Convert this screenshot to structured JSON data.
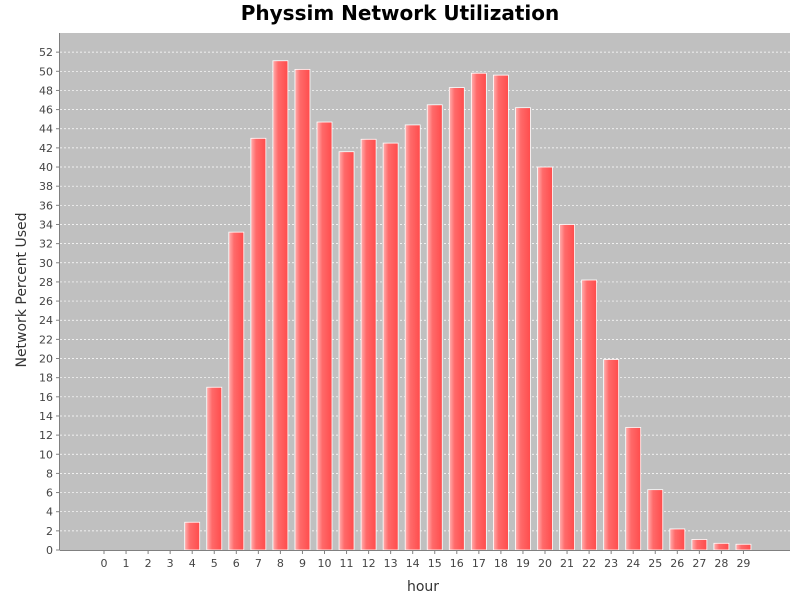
{
  "chart_data": {
    "type": "bar",
    "title": "Physsim Network Utilization",
    "xlabel": "hour",
    "ylabel": "Network Percent Used",
    "categories": [
      "0",
      "1",
      "2",
      "3",
      "4",
      "5",
      "6",
      "7",
      "8",
      "9",
      "10",
      "11",
      "12",
      "13",
      "14",
      "15",
      "16",
      "17",
      "18",
      "19",
      "20",
      "21",
      "22",
      "23",
      "24",
      "25",
      "26",
      "27",
      "28",
      "29"
    ],
    "series": [
      {
        "values": [
          0,
          0,
          0,
          0,
          2.9,
          17.0,
          33.2,
          43.0,
          51.1,
          50.2,
          44.7,
          41.6,
          42.9,
          42.5,
          44.4,
          46.5,
          48.3,
          49.8,
          49.6,
          46.2,
          40.0,
          34.0,
          28.2,
          19.9,
          12.8,
          6.3,
          2.2,
          1.1,
          0.7,
          0.6
        ]
      }
    ],
    "ylim": [
      0,
      54
    ],
    "y_ticks": [
      0,
      2,
      4,
      6,
      8,
      10,
      12,
      14,
      16,
      18,
      20,
      22,
      24,
      26,
      28,
      30,
      32,
      34,
      36,
      38,
      40,
      42,
      44,
      46,
      48,
      50,
      52
    ],
    "grid": true,
    "colors": {
      "plot_background": "#c0c0c0",
      "bar": "#ff5555",
      "bar_highlight": "#ffb0b0",
      "grid": "#ffffff"
    }
  }
}
